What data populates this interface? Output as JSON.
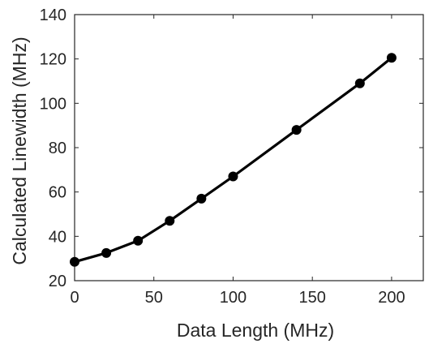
{
  "chart_data": {
    "type": "line",
    "title": "",
    "xlabel": "Data Length (MHz)",
    "ylabel": "Calculated Linewidth (MHz)",
    "xlim": [
      0,
      220
    ],
    "ylim": [
      20,
      140
    ],
    "xticks": [
      0,
      50,
      100,
      150,
      200
    ],
    "yticks": [
      20,
      40,
      60,
      80,
      100,
      120,
      140
    ],
    "grid": false,
    "legend": "none",
    "series": [
      {
        "x": [
          0,
          20,
          40,
          60,
          80,
          100,
          140,
          180,
          200
        ],
        "y": [
          28.5,
          32.5,
          38,
          47,
          57,
          67,
          88,
          109,
          120.5
        ],
        "color": "#000000",
        "marker": "circle"
      }
    ]
  }
}
